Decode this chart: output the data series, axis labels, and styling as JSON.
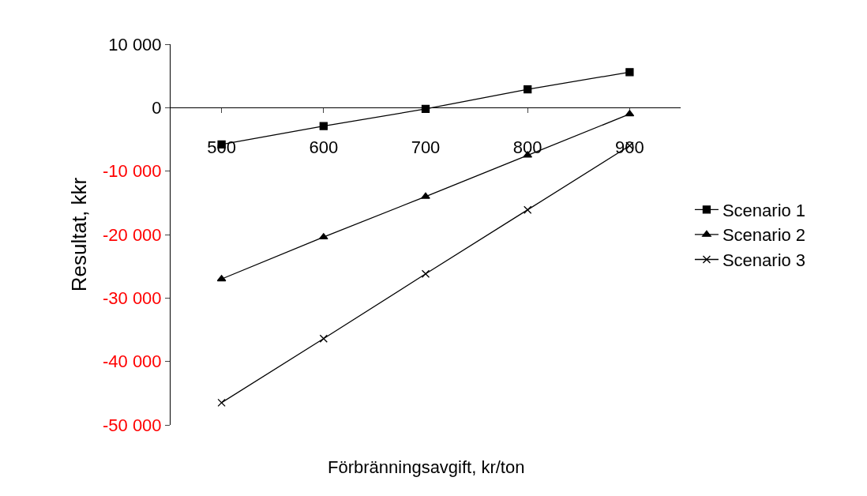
{
  "chart_data": {
    "type": "line",
    "xlabel": "Förbränningsavgift, kr/ton",
    "ylabel": "Resultat, kkr",
    "categories": [
      "500",
      "600",
      "700",
      "800",
      "900"
    ],
    "series": [
      {
        "name": "Scenario 1",
        "color": "#000000",
        "marker": "square",
        "values": [
          -5800,
          -2900,
          -200,
          2900,
          5600
        ]
      },
      {
        "name": "Scenario 2",
        "color": "#000000",
        "marker": "triangle",
        "values": [
          -27000,
          -20400,
          -14000,
          -7500,
          -1000
        ]
      },
      {
        "name": "Scenario 3",
        "color": "#000000",
        "marker": "cross",
        "values": [
          -46500,
          -36400,
          -26200,
          -16100,
          -6000
        ]
      }
    ],
    "ylim": [
      -50000,
      10000
    ],
    "yticks": [
      {
        "value": 10000,
        "label": "10 000"
      },
      0,
      {
        "value": -10000,
        "label": "-10 000"
      },
      {
        "value": -20000,
        "label": "-20 000"
      },
      {
        "value": -30000,
        "label": "-30 000"
      },
      {
        "value": -40000,
        "label": "-40 000"
      },
      {
        "value": -50000,
        "label": "-50 000"
      }
    ],
    "legend": "right",
    "line_style": "solid"
  }
}
